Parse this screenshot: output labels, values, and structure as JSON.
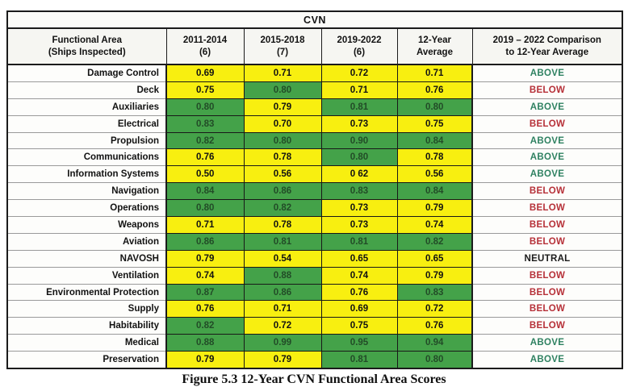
{
  "table": {
    "title": "CVN",
    "caption": "Figure 5.3 12-Year CVN Functional Area Scores",
    "columns": [
      {
        "label": "Functional Area",
        "sub": "(Ships Inspected)"
      },
      {
        "label": "2011-2014",
        "sub": "(6)"
      },
      {
        "label": "2015-2018",
        "sub": "(7)"
      },
      {
        "label": "2019-2022",
        "sub": "(6)"
      },
      {
        "label": "12-Year",
        "sub": "Average"
      },
      {
        "label": "2019 – 2022 Comparison",
        "sub": "to 12-Year Average"
      }
    ],
    "rows": [
      {
        "area": "Damage Control",
        "values": [
          {
            "v": "0.69",
            "c": "yellow"
          },
          {
            "v": "0.71",
            "c": "yellow"
          },
          {
            "v": "0.72",
            "c": "yellow"
          },
          {
            "v": "0.71",
            "c": "yellow"
          }
        ],
        "comparison": "ABOVE",
        "comparison_style": "above"
      },
      {
        "area": "Deck",
        "values": [
          {
            "v": "0.75",
            "c": "yellow"
          },
          {
            "v": "0.80",
            "c": "green"
          },
          {
            "v": "0.71",
            "c": "yellow"
          },
          {
            "v": "0.76",
            "c": "yellow"
          }
        ],
        "comparison": "BELOW",
        "comparison_style": "below"
      },
      {
        "area": "Auxiliaries",
        "values": [
          {
            "v": "0.80",
            "c": "green"
          },
          {
            "v": "0.79",
            "c": "yellow"
          },
          {
            "v": "0.81",
            "c": "green"
          },
          {
            "v": "0.80",
            "c": "green"
          }
        ],
        "comparison": "ABOVE",
        "comparison_style": "above"
      },
      {
        "area": "Electrical",
        "values": [
          {
            "v": "0.83",
            "c": "green"
          },
          {
            "v": "0.70",
            "c": "yellow"
          },
          {
            "v": "0.73",
            "c": "yellow"
          },
          {
            "v": "0.75",
            "c": "yellow"
          }
        ],
        "comparison": "BELOW",
        "comparison_style": "below"
      },
      {
        "area": "Propulsion",
        "values": [
          {
            "v": "0.82",
            "c": "green"
          },
          {
            "v": "0.80",
            "c": "green"
          },
          {
            "v": "0.90",
            "c": "green"
          },
          {
            "v": "0.84",
            "c": "green"
          }
        ],
        "comparison": "ABOVE",
        "comparison_style": "above"
      },
      {
        "area": "Communications",
        "values": [
          {
            "v": "0.76",
            "c": "yellow"
          },
          {
            "v": "0.78",
            "c": "yellow"
          },
          {
            "v": "0.80",
            "c": "green"
          },
          {
            "v": "0.78",
            "c": "yellow"
          }
        ],
        "comparison": "ABOVE",
        "comparison_style": "above"
      },
      {
        "area": "Information Systems",
        "values": [
          {
            "v": "0.50",
            "c": "yellow"
          },
          {
            "v": "0.56",
            "c": "yellow"
          },
          {
            "v": "0 62",
            "c": "yellow"
          },
          {
            "v": "0.56",
            "c": "yellow"
          }
        ],
        "comparison": "ABOVE",
        "comparison_style": "above"
      },
      {
        "area": "Navigation",
        "values": [
          {
            "v": "0.84",
            "c": "green"
          },
          {
            "v": "0.86",
            "c": "green"
          },
          {
            "v": "0.83",
            "c": "green"
          },
          {
            "v": "0.84",
            "c": "green"
          }
        ],
        "comparison": "BELOW",
        "comparison_style": "below"
      },
      {
        "area": "Operations",
        "values": [
          {
            "v": "0.80",
            "c": "green"
          },
          {
            "v": "0.82",
            "c": "green"
          },
          {
            "v": "0.73",
            "c": "yellow"
          },
          {
            "v": "0.79",
            "c": "yellow"
          }
        ],
        "comparison": "BELOW",
        "comparison_style": "below"
      },
      {
        "area": "Weapons",
        "values": [
          {
            "v": "0.71",
            "c": "yellow"
          },
          {
            "v": "0.78",
            "c": "yellow"
          },
          {
            "v": "0.73",
            "c": "yellow"
          },
          {
            "v": "0.74",
            "c": "yellow"
          }
        ],
        "comparison": "BELOW",
        "comparison_style": "below"
      },
      {
        "area": "Aviation",
        "values": [
          {
            "v": "0.86",
            "c": "green"
          },
          {
            "v": "0.81",
            "c": "green"
          },
          {
            "v": "0.81",
            "c": "green"
          },
          {
            "v": "0.82",
            "c": "green"
          }
        ],
        "comparison": "BELOW",
        "comparison_style": "below"
      },
      {
        "area": "NAVOSH",
        "values": [
          {
            "v": "0.79",
            "c": "yellow"
          },
          {
            "v": "0.54",
            "c": "yellow"
          },
          {
            "v": "0.65",
            "c": "yellow"
          },
          {
            "v": "0.65",
            "c": "yellow"
          }
        ],
        "comparison": "NEUTRAL",
        "comparison_style": "neutral"
      },
      {
        "area": "Ventilation",
        "values": [
          {
            "v": "0.74",
            "c": "yellow"
          },
          {
            "v": "0.88",
            "c": "green"
          },
          {
            "v": "0.74",
            "c": "yellow"
          },
          {
            "v": "0.79",
            "c": "yellow"
          }
        ],
        "comparison": "BELOW",
        "comparison_style": "below"
      },
      {
        "area": "Environmental Protection",
        "values": [
          {
            "v": "0.87",
            "c": "green"
          },
          {
            "v": "0.86",
            "c": "green"
          },
          {
            "v": "0.76",
            "c": "yellow"
          },
          {
            "v": "0.83",
            "c": "green"
          }
        ],
        "comparison": "BELOW",
        "comparison_style": "below"
      },
      {
        "area": "Supply",
        "values": [
          {
            "v": "0.76",
            "c": "yellow"
          },
          {
            "v": "0.71",
            "c": "yellow"
          },
          {
            "v": "0.69",
            "c": "yellow"
          },
          {
            "v": "0.72",
            "c": "yellow"
          }
        ],
        "comparison": "BELOW",
        "comparison_style": "below"
      },
      {
        "area": "Habitability",
        "values": [
          {
            "v": "0.82",
            "c": "green"
          },
          {
            "v": "0.72",
            "c": "yellow"
          },
          {
            "v": "0.75",
            "c": "yellow"
          },
          {
            "v": "0.76",
            "c": "yellow"
          }
        ],
        "comparison": "BELOW",
        "comparison_style": "below"
      },
      {
        "area": "Medical",
        "values": [
          {
            "v": "0.88",
            "c": "green"
          },
          {
            "v": "0.99",
            "c": "green"
          },
          {
            "v": "0.95",
            "c": "green"
          },
          {
            "v": "0.94",
            "c": "green"
          }
        ],
        "comparison": "ABOVE",
        "comparison_style": "above"
      },
      {
        "area": "Preservation",
        "values": [
          {
            "v": "0.79",
            "c": "yellow"
          },
          {
            "v": "0.79",
            "c": "yellow"
          },
          {
            "v": "0.81",
            "c": "green"
          },
          {
            "v": "0.80",
            "c": "green"
          }
        ],
        "comparison": "ABOVE",
        "comparison_style": "above"
      }
    ]
  },
  "colors": {
    "cell_yellow": "#f8ef10",
    "cell_green": "#44a249",
    "comparison_above": "#2e8161",
    "comparison_below": "#b63038",
    "comparison_neutral": "#1a1a1a"
  }
}
